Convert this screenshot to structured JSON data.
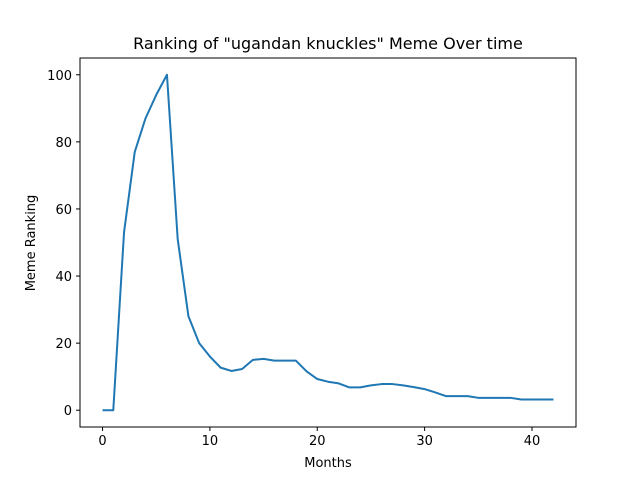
{
  "chart_data": {
    "type": "line",
    "title": "Ranking of \"ugandan knuckles\" Meme Over time",
    "xlabel": "Months",
    "ylabel": "Meme Ranking",
    "xlim": [
      -2.1,
      44.1
    ],
    "ylim": [
      -5,
      105
    ],
    "xticks": [
      0,
      10,
      20,
      30,
      40
    ],
    "yticks": [
      0,
      20,
      40,
      60,
      80,
      100
    ],
    "grid": false,
    "line_color": "#1f77b4",
    "series": [
      {
        "x": [
          0,
          1,
          2,
          3,
          4,
          5,
          6,
          7,
          8,
          9,
          10,
          11,
          12,
          13,
          14,
          15,
          16,
          17,
          18,
          19,
          20,
          21,
          22,
          23,
          24,
          25,
          26,
          27,
          28,
          29,
          30,
          31,
          32,
          33,
          34,
          35,
          36,
          37,
          38,
          39,
          40,
          41,
          42
        ],
        "values": [
          0,
          0,
          53,
          77,
          87,
          94,
          100,
          51,
          28,
          20,
          16,
          12.7,
          11.7,
          12.3,
          15,
          15.3,
          14.8,
          14.8,
          14.8,
          11.6,
          9.3,
          8.5,
          8,
          6.8,
          6.8,
          7.4,
          7.8,
          7.8,
          7.4,
          6.9,
          6.3,
          5.3,
          4.2,
          4.2,
          4.2,
          3.7,
          3.7,
          3.7,
          3.7,
          3.2,
          3.2,
          3.2,
          3.2
        ]
      }
    ]
  }
}
